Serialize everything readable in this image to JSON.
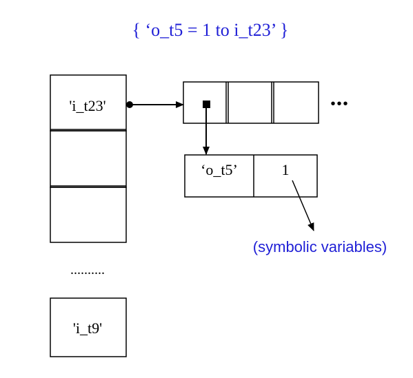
{
  "title": "{ ‘o_t5 = 1 to i_t23’ }",
  "colors": {
    "accent": "#1f1fd6",
    "ink": "#000000"
  },
  "table": {
    "cells": [
      "'i_t23'",
      "",
      ""
    ],
    "ellipsis": "..........",
    "last_cell": "'i_t9'"
  },
  "array": {
    "continuation": "•••"
  },
  "pair": {
    "key": "‘o_t5’",
    "value": "1"
  },
  "annotation": "(symbolic variables)"
}
